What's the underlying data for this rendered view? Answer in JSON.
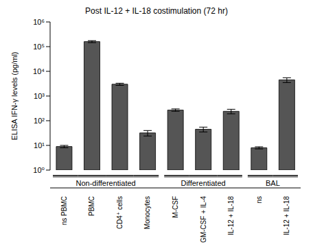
{
  "chart_data": {
    "type": "bar",
    "title": "Post IL-12 + IL-18 costimulation (72 hr)",
    "y_label": "ELISA IFN-γ levels (pg/ml)",
    "categories": [
      "ns PBMC",
      "PBMC",
      "CD4⁺ cells",
      "Monocytes",
      "M-CSF",
      "GM-CSF + IL-4",
      "IL-12 + IL-18",
      "ns",
      "IL-12 + IL-18"
    ],
    "groups": [
      "Non-differentiated",
      "Non-differentiated",
      "Non-differentiated",
      "Non-differentiated",
      "Differentiated",
      "Differentiated",
      "Differentiated",
      "BAL",
      "BAL"
    ],
    "values": [
      9,
      160000,
      3000,
      32,
      270,
      45,
      240,
      8,
      4500
    ],
    "errors": [
      1,
      15000,
      300,
      8,
      30,
      10,
      50,
      0.8,
      1000
    ],
    "color": "#555555",
    "log": "y",
    "ylim": [
      1,
      1000000
    ],
    "yticks": [
      {
        "value": 1,
        "label": "10⁰"
      },
      {
        "value": 10,
        "label": "10¹"
      },
      {
        "value": 100,
        "label": "10²"
      },
      {
        "value": 1000,
        "label": "10³"
      },
      {
        "value": 10000,
        "label": "10⁴"
      },
      {
        "value": 100000,
        "label": "10⁵"
      },
      {
        "value": 1000000,
        "label": "10⁶"
      }
    ],
    "grid": false
  }
}
